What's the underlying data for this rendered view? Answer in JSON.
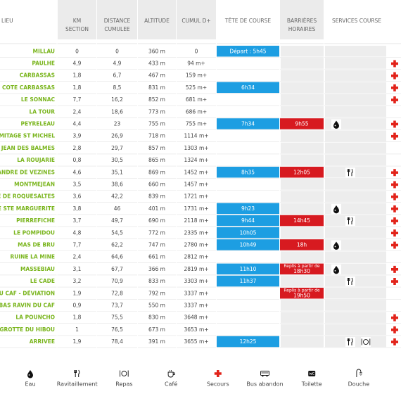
{
  "headers": [
    [
      "LIEU"
    ],
    [
      "KM",
      "SECTION"
    ],
    [
      "DISTANCE",
      "CUMULEE"
    ],
    [
      "ALTITUDE"
    ],
    [
      "CUMUL D+"
    ],
    [
      "TÊTE DE COURSE"
    ],
    [
      "BARRIÈRES",
      "HORAIRES"
    ],
    [
      "SERVICES COURSE"
    ]
  ],
  "rows": [
    {
      "lieu": "MILLAU",
      "km": "0",
      "distance": "0",
      "altitude": "360 m",
      "cumul": "0",
      "tete": "Départ : 5h45",
      "services": []
    },
    {
      "lieu": "PAULHE",
      "km": "4,9",
      "distance": "4,9",
      "altitude": "433 m",
      "cumul": "94 m+",
      "services": [
        4
      ]
    },
    {
      "lieu": "CARBASSAS",
      "km": "1,8",
      "distance": "6,7",
      "altitude": "467 m",
      "cumul": "159 m+",
      "services": [
        4
      ]
    },
    {
      "lieu": "COTE CARBASSAS",
      "km": "1,8",
      "distance": "8,5",
      "altitude": "831 m",
      "cumul": "525 m+",
      "tete": "6h34",
      "services": [
        4
      ]
    },
    {
      "lieu": "LE SONNAC",
      "km": "7,7",
      "distance": "16,2",
      "altitude": "852 m",
      "cumul": "681 m+",
      "services": [
        4
      ]
    },
    {
      "lieu": "LA TOUR",
      "km": "2,4",
      "distance": "18,6",
      "altitude": "773 m",
      "cumul": "686 m+",
      "services": []
    },
    {
      "lieu": "PEYRELEAU",
      "km": "4,4",
      "distance": "23",
      "altitude": "755 m",
      "cumul": "755 m+",
      "tete": "7h34",
      "barriere": "9h55",
      "services": [
        0,
        4
      ]
    },
    {
      "lieu": "RMITAGE ST MICHEL",
      "km": "3,9",
      "distance": "26,9",
      "altitude": "718 m",
      "cumul": "1114 m+",
      "services": [
        4
      ]
    },
    {
      "lieu": "JEAN DES BALMES",
      "km": "2,8",
      "distance": "29,7",
      "altitude": "857 m",
      "cumul": "1303 m+",
      "services": []
    },
    {
      "lieu": "LA ROUJARIE",
      "km": "0,8",
      "distance": "30,5",
      "altitude": "865 m",
      "cumul": "1324 m+",
      "services": []
    },
    {
      "lieu": "ANDRE DE VEZINES",
      "km": "4,6",
      "distance": "35,1",
      "altitude": "869 m",
      "cumul": "1452 m+",
      "tete": "8h35",
      "barriere": "12h05",
      "services": [
        1,
        4
      ]
    },
    {
      "lieu": "MONTMEJEAN",
      "km": "3,5",
      "distance": "38,6",
      "altitude": "660 m",
      "cumul": "1457 m+",
      "services": [
        4
      ]
    },
    {
      "lieu": "E DE ROQUESALTES",
      "km": "3,6",
      "distance": "42,2",
      "altitude": "839 m",
      "cumul": "1721 m+",
      "services": [
        4
      ]
    },
    {
      "lieu": "E STE MARGUERITE",
      "km": "3,8",
      "distance": "46",
      "altitude": "401 m",
      "cumul": "1731 m+",
      "tete": "9h23",
      "services": [
        0,
        4
      ]
    },
    {
      "lieu": "PIERREFICHE",
      "km": "3,7",
      "distance": "49,7",
      "altitude": "690 m",
      "cumul": "2118 m+",
      "tete": "9h44",
      "barriere": "14h45",
      "services": [
        1,
        4
      ]
    },
    {
      "lieu": "LE POMPIDOU",
      "km": "4,8",
      "distance": "54,5",
      "altitude": "772 m",
      "cumul": "2335 m+",
      "tete": "10h05",
      "services": [
        4
      ]
    },
    {
      "lieu": "MAS DE BRU",
      "km": "7,7",
      "distance": "62,2",
      "altitude": "747 m",
      "cumul": "2780 m+",
      "tete": "10h49",
      "barriere": "18h",
      "services": [
        0,
        4
      ]
    },
    {
      "lieu": "RUINE LA MINE",
      "km": "2,4",
      "distance": "64,6",
      "altitude": "661 m",
      "cumul": "2812 m+",
      "services": []
    },
    {
      "lieu": "MASSEBIAU",
      "km": "3,1",
      "distance": "67,7",
      "altitude": "366 m",
      "cumul": "2819 m+",
      "tete": "11h10",
      "barriere": [
        "Replis à partir de",
        "18h30"
      ],
      "services": [
        0,
        4
      ]
    },
    {
      "lieu": "LE CADE",
      "km": "3,2",
      "distance": "70,9",
      "altitude": "833 m",
      "cumul": "3303 m+",
      "tete": "11h37",
      "services": [
        1,
        4
      ]
    },
    {
      "lieu": "U CAF - DÉVIATION",
      "km": "1,9",
      "distance": "72,8",
      "altitude": "792 m",
      "cumul": "3337 m+",
      "barriere": [
        "Replis à partir de",
        "19h50"
      ],
      "services": []
    },
    {
      "lieu": "BAS RAVIN DU CAF",
      "km": "0,9",
      "distance": "73,7",
      "altitude": "550 m",
      "cumul": "3337 m+",
      "services": []
    },
    {
      "lieu": "LA POUNCHO",
      "km": "1,8",
      "distance": "75,5",
      "altitude": "830 m",
      "cumul": "3648 m+",
      "services": [
        4
      ]
    },
    {
      "lieu": "GROTTE DU HIBOU",
      "km": "1",
      "distance": "76,5",
      "altitude": "673 m",
      "cumul": "3653 m+",
      "services": [
        4
      ]
    },
    {
      "lieu": "ARRIVEE",
      "km": "1,9",
      "distance": "78,4",
      "altitude": "391 m",
      "cumul": "3655 m+",
      "tete": "12h25",
      "services": [
        1,
        2,
        4
      ]
    }
  ],
  "legend": [
    "Eau",
    "Ravitaillement",
    "Repas",
    "Café",
    "Secours",
    "Bus abandon",
    "Toilette",
    "Douche"
  ]
}
